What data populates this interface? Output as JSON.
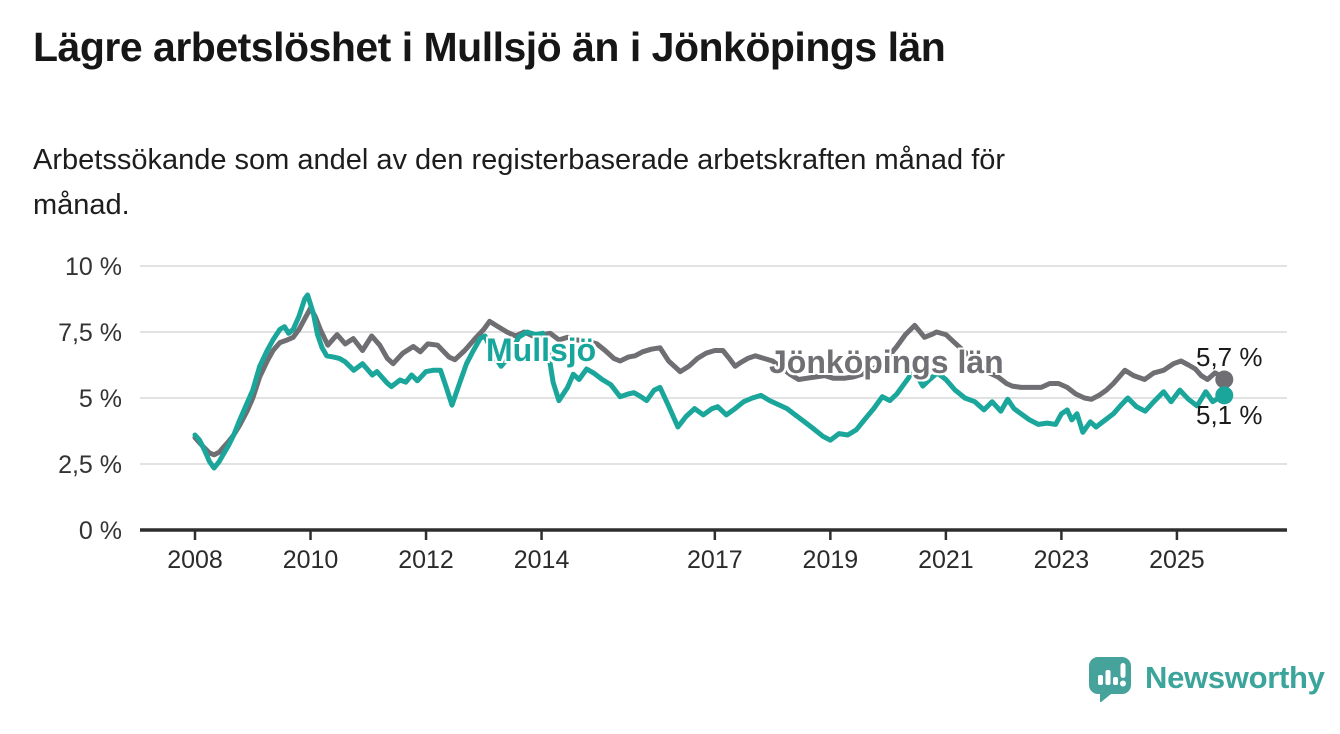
{
  "header": {
    "title": "Lägre arbetslöshet i Mullsjö än i Jönköpings län",
    "subtitle_lines": [
      "Arbetssökande som andel av den registerbaserade arbetskraften månad för",
      "månad."
    ]
  },
  "chart_data": {
    "type": "line",
    "title": "Lägre arbetslöshet i Mullsjö än i Jönköpings län",
    "unit": "%",
    "grid": true,
    "legend_position": "inline-labels-on-lines",
    "x_axis": {
      "range": [
        2008,
        2025.82
      ],
      "ticks": [
        2008,
        2010,
        2012,
        2014,
        2017,
        2019,
        2021,
        2023,
        2025
      ]
    },
    "y_axis": {
      "range": [
        0,
        10
      ],
      "ticks": [
        {
          "label": "0 %",
          "value": 0
        },
        {
          "label": "2,5 %",
          "value": 2.5
        },
        {
          "label": "5 %",
          "value": 5
        },
        {
          "label": "7,5 %",
          "value": 7.5
        },
        {
          "label": "10 %",
          "value": 10
        }
      ]
    },
    "series": [
      {
        "name": "Jönköpings län",
        "color": "#6e6e73",
        "end_label": "5,7 %",
        "end_value": 5.7,
        "points": [
          [
            2008,
            3.5
          ],
          [
            2008.08,
            3.3
          ],
          [
            2008.17,
            3.1
          ],
          [
            2008.25,
            2.92
          ],
          [
            2008.33,
            2.85
          ],
          [
            2008.42,
            2.95
          ],
          [
            2008.5,
            3.15
          ],
          [
            2008.58,
            3.35
          ],
          [
            2008.67,
            3.6
          ],
          [
            2008.78,
            4.0
          ],
          [
            2008.9,
            4.5
          ],
          [
            2009,
            5.0
          ],
          [
            2009.12,
            5.8
          ],
          [
            2009.25,
            6.4
          ],
          [
            2009.35,
            6.8
          ],
          [
            2009.47,
            7.1
          ],
          [
            2009.6,
            7.2
          ],
          [
            2009.7,
            7.3
          ],
          [
            2009.8,
            7.6
          ],
          [
            2009.9,
            8.0
          ],
          [
            2010,
            8.4
          ],
          [
            2010.08,
            8.1
          ],
          [
            2010.17,
            7.6
          ],
          [
            2010.3,
            7.0
          ],
          [
            2010.46,
            7.4
          ],
          [
            2010.6,
            7.05
          ],
          [
            2010.74,
            7.25
          ],
          [
            2010.9,
            6.8
          ],
          [
            2011.06,
            7.35
          ],
          [
            2011.2,
            7.0
          ],
          [
            2011.33,
            6.5
          ],
          [
            2011.43,
            6.3
          ],
          [
            2011.6,
            6.7
          ],
          [
            2011.78,
            6.95
          ],
          [
            2011.9,
            6.75
          ],
          [
            2012.03,
            7.05
          ],
          [
            2012.2,
            7.0
          ],
          [
            2012.4,
            6.55
          ],
          [
            2012.5,
            6.45
          ],
          [
            2012.67,
            6.8
          ],
          [
            2012.85,
            7.25
          ],
          [
            2013,
            7.6
          ],
          [
            2013.1,
            7.9
          ],
          [
            2013.25,
            7.7
          ],
          [
            2013.4,
            7.5
          ],
          [
            2013.55,
            7.35
          ],
          [
            2013.7,
            7.5
          ],
          [
            2013.85,
            7.35
          ],
          [
            2014,
            7.4
          ],
          [
            2014.15,
            7.45
          ],
          [
            2014.3,
            7.2
          ],
          [
            2014.45,
            7.3
          ],
          [
            2014.6,
            7.2
          ],
          [
            2014.8,
            7.15
          ],
          [
            2014.96,
            7.05
          ],
          [
            2015.1,
            6.8
          ],
          [
            2015.25,
            6.5
          ],
          [
            2015.36,
            6.4
          ],
          [
            2015.5,
            6.55
          ],
          [
            2015.62,
            6.6
          ],
          [
            2015.75,
            6.75
          ],
          [
            2015.9,
            6.85
          ],
          [
            2016.05,
            6.9
          ],
          [
            2016.2,
            6.4
          ],
          [
            2016.4,
            6.0
          ],
          [
            2016.55,
            6.2
          ],
          [
            2016.7,
            6.5
          ],
          [
            2016.85,
            6.7
          ],
          [
            2017,
            6.8
          ],
          [
            2017.14,
            6.8
          ],
          [
            2017.25,
            6.5
          ],
          [
            2017.35,
            6.2
          ],
          [
            2017.45,
            6.35
          ],
          [
            2017.57,
            6.5
          ],
          [
            2017.7,
            6.6
          ],
          [
            2017.85,
            6.5
          ],
          [
            2018,
            6.4
          ],
          [
            2018.15,
            6.15
          ],
          [
            2018.3,
            5.9
          ],
          [
            2018.45,
            5.7
          ],
          [
            2018.6,
            5.75
          ],
          [
            2018.75,
            5.8
          ],
          [
            2018.9,
            5.85
          ],
          [
            2019.05,
            5.75
          ],
          [
            2019.25,
            5.75
          ],
          [
            2019.4,
            5.8
          ],
          [
            2019.55,
            5.9
          ],
          [
            2019.7,
            6.05
          ],
          [
            2019.85,
            6.25
          ],
          [
            2020,
            6.55
          ],
          [
            2020.15,
            6.95
          ],
          [
            2020.3,
            7.4
          ],
          [
            2020.46,
            7.75
          ],
          [
            2020.63,
            7.3
          ],
          [
            2020.75,
            7.4
          ],
          [
            2020.84,
            7.5
          ],
          [
            2021,
            7.4
          ],
          [
            2021.15,
            7.1
          ],
          [
            2021.3,
            6.8
          ],
          [
            2021.45,
            6.5
          ],
          [
            2021.6,
            6.2
          ],
          [
            2021.75,
            5.95
          ],
          [
            2021.9,
            5.8
          ],
          [
            2022.05,
            5.55
          ],
          [
            2022.15,
            5.45
          ],
          [
            2022.3,
            5.4
          ],
          [
            2022.5,
            5.4
          ],
          [
            2022.65,
            5.4
          ],
          [
            2022.8,
            5.55
          ],
          [
            2022.95,
            5.55
          ],
          [
            2023.1,
            5.4
          ],
          [
            2023.25,
            5.15
          ],
          [
            2023.4,
            5.0
          ],
          [
            2023.52,
            4.95
          ],
          [
            2023.65,
            5.1
          ],
          [
            2023.78,
            5.3
          ],
          [
            2023.9,
            5.55
          ],
          [
            2024.02,
            5.85
          ],
          [
            2024.1,
            6.05
          ],
          [
            2024.25,
            5.85
          ],
          [
            2024.44,
            5.7
          ],
          [
            2024.6,
            5.95
          ],
          [
            2024.77,
            6.05
          ],
          [
            2024.94,
            6.3
          ],
          [
            2025.07,
            6.4
          ],
          [
            2025.2,
            6.25
          ],
          [
            2025.32,
            6.1
          ],
          [
            2025.42,
            5.85
          ],
          [
            2025.53,
            5.7
          ],
          [
            2025.66,
            5.95
          ],
          [
            2025.75,
            5.85
          ],
          [
            2025.82,
            5.7
          ]
        ]
      },
      {
        "name": "Mullsjö",
        "color": "#1aa69b",
        "end_label": "5,1 %",
        "end_value": 5.1,
        "points": [
          [
            2008,
            3.6
          ],
          [
            2008.08,
            3.4
          ],
          [
            2008.17,
            3.0
          ],
          [
            2008.25,
            2.6
          ],
          [
            2008.33,
            2.35
          ],
          [
            2008.42,
            2.6
          ],
          [
            2008.5,
            2.9
          ],
          [
            2008.58,
            3.2
          ],
          [
            2008.67,
            3.6
          ],
          [
            2008.78,
            4.2
          ],
          [
            2008.9,
            4.8
          ],
          [
            2009,
            5.3
          ],
          [
            2009.12,
            6.2
          ],
          [
            2009.25,
            6.8
          ],
          [
            2009.35,
            7.2
          ],
          [
            2009.47,
            7.6
          ],
          [
            2009.55,
            7.7
          ],
          [
            2009.62,
            7.45
          ],
          [
            2009.7,
            7.6
          ],
          [
            2009.8,
            8.1
          ],
          [
            2009.9,
            8.75
          ],
          [
            2009.95,
            8.9
          ],
          [
            2010.05,
            8.2
          ],
          [
            2010.12,
            7.4
          ],
          [
            2010.2,
            6.9
          ],
          [
            2010.28,
            6.6
          ],
          [
            2010.4,
            6.55
          ],
          [
            2010.5,
            6.5
          ],
          [
            2010.6,
            6.37
          ],
          [
            2010.75,
            6.05
          ],
          [
            2010.9,
            6.3
          ],
          [
            2011.07,
            5.87
          ],
          [
            2011.15,
            6.0
          ],
          [
            2011.33,
            5.56
          ],
          [
            2011.4,
            5.43
          ],
          [
            2011.55,
            5.68
          ],
          [
            2011.65,
            5.6
          ],
          [
            2011.75,
            5.87
          ],
          [
            2011.85,
            5.65
          ],
          [
            2012,
            6.0
          ],
          [
            2012.12,
            6.05
          ],
          [
            2012.25,
            6.05
          ],
          [
            2012.35,
            5.4
          ],
          [
            2012.45,
            4.73
          ],
          [
            2012.6,
            5.68
          ],
          [
            2012.7,
            6.3
          ],
          [
            2012.82,
            6.8
          ],
          [
            2012.94,
            7.26
          ],
          [
            2013.02,
            7.35
          ],
          [
            2013.15,
            6.7
          ],
          [
            2013.3,
            6.2
          ],
          [
            2013.45,
            6.6
          ],
          [
            2013.6,
            7.3
          ],
          [
            2013.75,
            7.5
          ],
          [
            2013.9,
            7.4
          ],
          [
            2014.02,
            7.45
          ],
          [
            2014.12,
            6.7
          ],
          [
            2014.2,
            5.6
          ],
          [
            2014.3,
            4.9
          ],
          [
            2014.45,
            5.4
          ],
          [
            2014.55,
            5.9
          ],
          [
            2014.65,
            5.7
          ],
          [
            2014.78,
            6.1
          ],
          [
            2014.9,
            5.95
          ],
          [
            2015.05,
            5.7
          ],
          [
            2015.2,
            5.5
          ],
          [
            2015.36,
            5.05
          ],
          [
            2015.5,
            5.15
          ],
          [
            2015.6,
            5.2
          ],
          [
            2015.72,
            5.05
          ],
          [
            2015.82,
            4.9
          ],
          [
            2015.95,
            5.3
          ],
          [
            2016.05,
            5.4
          ],
          [
            2016.2,
            4.7
          ],
          [
            2016.36,
            3.9
          ],
          [
            2016.5,
            4.3
          ],
          [
            2016.65,
            4.6
          ],
          [
            2016.8,
            4.36
          ],
          [
            2016.95,
            4.6
          ],
          [
            2017.05,
            4.67
          ],
          [
            2017.2,
            4.36
          ],
          [
            2017.35,
            4.6
          ],
          [
            2017.5,
            4.86
          ],
          [
            2017.65,
            5.0
          ],
          [
            2017.8,
            5.1
          ],
          [
            2017.95,
            4.9
          ],
          [
            2018.1,
            4.75
          ],
          [
            2018.25,
            4.6
          ],
          [
            2018.4,
            4.35
          ],
          [
            2018.55,
            4.1
          ],
          [
            2018.7,
            3.85
          ],
          [
            2018.87,
            3.55
          ],
          [
            2019,
            3.4
          ],
          [
            2019.15,
            3.65
          ],
          [
            2019.3,
            3.6
          ],
          [
            2019.45,
            3.8
          ],
          [
            2019.6,
            4.2
          ],
          [
            2019.75,
            4.6
          ],
          [
            2019.9,
            5.05
          ],
          [
            2020.03,
            4.9
          ],
          [
            2020.15,
            5.15
          ],
          [
            2020.3,
            5.6
          ],
          [
            2020.45,
            6.05
          ],
          [
            2020.6,
            5.45
          ],
          [
            2020.72,
            5.7
          ],
          [
            2020.85,
            5.95
          ],
          [
            2021,
            5.7
          ],
          [
            2021.16,
            5.3
          ],
          [
            2021.33,
            5.0
          ],
          [
            2021.5,
            4.86
          ],
          [
            2021.66,
            4.55
          ],
          [
            2021.8,
            4.86
          ],
          [
            2021.95,
            4.5
          ],
          [
            2022.07,
            4.95
          ],
          [
            2022.18,
            4.6
          ],
          [
            2022.3,
            4.4
          ],
          [
            2022.45,
            4.17
          ],
          [
            2022.6,
            4.0
          ],
          [
            2022.75,
            4.05
          ],
          [
            2022.9,
            4.0
          ],
          [
            2023,
            4.4
          ],
          [
            2023.1,
            4.55
          ],
          [
            2023.18,
            4.17
          ],
          [
            2023.27,
            4.4
          ],
          [
            2023.37,
            3.7
          ],
          [
            2023.5,
            4.1
          ],
          [
            2023.6,
            3.9
          ],
          [
            2023.75,
            4.15
          ],
          [
            2023.9,
            4.4
          ],
          [
            2024.02,
            4.7
          ],
          [
            2024.15,
            5.0
          ],
          [
            2024.3,
            4.67
          ],
          [
            2024.45,
            4.5
          ],
          [
            2024.6,
            4.86
          ],
          [
            2024.77,
            5.24
          ],
          [
            2024.9,
            4.86
          ],
          [
            2025.05,
            5.3
          ],
          [
            2025.2,
            4.95
          ],
          [
            2025.35,
            4.7
          ],
          [
            2025.5,
            5.24
          ],
          [
            2025.62,
            4.86
          ],
          [
            2025.72,
            5.0
          ],
          [
            2025.82,
            5.1
          ]
        ]
      }
    ]
  },
  "branding": {
    "logo_text": "Newsworthy",
    "color": "#3ba49b"
  }
}
